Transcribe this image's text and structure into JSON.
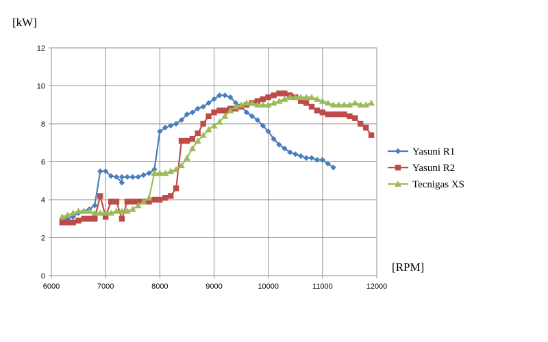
{
  "chart_data": {
    "type": "line",
    "ylabel": "[kW]",
    "xlabel": "[RPM]",
    "xlim": [
      6000,
      12000
    ],
    "ylim": [
      0,
      12
    ],
    "x_ticks": [
      6000,
      7000,
      8000,
      9000,
      10000,
      11000,
      12000
    ],
    "y_ticks": [
      0,
      2,
      4,
      6,
      8,
      10,
      12
    ],
    "grid": true,
    "legend_position": "right",
    "series": [
      {
        "name": "Yasuni R1",
        "color": "#4a7ebb",
        "marker": "diamond",
        "points": [
          [
            6200,
            3.0
          ],
          [
            6300,
            3.0
          ],
          [
            6400,
            3.1
          ],
          [
            6500,
            3.3
          ],
          [
            6600,
            3.4
          ],
          [
            6700,
            3.5
          ],
          [
            6800,
            3.7
          ],
          [
            6900,
            5.5
          ],
          [
            7000,
            5.5
          ],
          [
            7100,
            5.25
          ],
          [
            7200,
            5.2
          ],
          [
            7300,
            4.9
          ],
          [
            7300,
            5.2
          ],
          [
            7400,
            5.2
          ],
          [
            7500,
            5.2
          ],
          [
            7600,
            5.2
          ],
          [
            7700,
            5.3
          ],
          [
            7800,
            5.4
          ],
          [
            7900,
            5.6
          ],
          [
            8000,
            7.6
          ],
          [
            8100,
            7.8
          ],
          [
            8200,
            7.9
          ],
          [
            8300,
            8.0
          ],
          [
            8400,
            8.2
          ],
          [
            8500,
            8.5
          ],
          [
            8600,
            8.6
          ],
          [
            8700,
            8.8
          ],
          [
            8800,
            8.9
          ],
          [
            8900,
            9.1
          ],
          [
            9000,
            9.3
          ],
          [
            9100,
            9.5
          ],
          [
            9200,
            9.5
          ],
          [
            9300,
            9.4
          ],
          [
            9400,
            9.1
          ],
          [
            9500,
            8.9
          ],
          [
            9600,
            8.6
          ],
          [
            9700,
            8.4
          ],
          [
            9800,
            8.2
          ],
          [
            9900,
            7.9
          ],
          [
            10000,
            7.6
          ],
          [
            10100,
            7.2
          ],
          [
            10200,
            6.9
          ],
          [
            10300,
            6.7
          ],
          [
            10400,
            6.5
          ],
          [
            10500,
            6.4
          ],
          [
            10600,
            6.3
          ],
          [
            10700,
            6.2
          ],
          [
            10800,
            6.2
          ],
          [
            10900,
            6.1
          ],
          [
            11000,
            6.1
          ],
          [
            11100,
            5.9
          ],
          [
            11200,
            5.7
          ]
        ]
      },
      {
        "name": "Yasuni R2",
        "color": "#be4b48",
        "marker": "square",
        "points": [
          [
            6200,
            2.8
          ],
          [
            6300,
            2.8
          ],
          [
            6400,
            2.8
          ],
          [
            6500,
            2.9
          ],
          [
            6600,
            3.0
          ],
          [
            6700,
            3.0
          ],
          [
            6800,
            3.0
          ],
          [
            6900,
            4.2
          ],
          [
            7000,
            3.1
          ],
          [
            7100,
            3.9
          ],
          [
            7200,
            3.9
          ],
          [
            7300,
            3.0
          ],
          [
            7400,
            3.9
          ],
          [
            7500,
            3.9
          ],
          [
            7600,
            3.9
          ],
          [
            7700,
            3.9
          ],
          [
            7800,
            3.9
          ],
          [
            7900,
            4.0
          ],
          [
            8000,
            4.0
          ],
          [
            8100,
            4.1
          ],
          [
            8200,
            4.2
          ],
          [
            8300,
            4.6
          ],
          [
            8400,
            7.1
          ],
          [
            8500,
            7.1
          ],
          [
            8600,
            7.2
          ],
          [
            8700,
            7.5
          ],
          [
            8800,
            8.0
          ],
          [
            8900,
            8.4
          ],
          [
            9000,
            8.6
          ],
          [
            9100,
            8.7
          ],
          [
            9200,
            8.7
          ],
          [
            9300,
            8.8
          ],
          [
            9400,
            8.8
          ],
          [
            9500,
            8.9
          ],
          [
            9600,
            9.0
          ],
          [
            9700,
            9.1
          ],
          [
            9800,
            9.2
          ],
          [
            9900,
            9.3
          ],
          [
            10000,
            9.4
          ],
          [
            10100,
            9.5
          ],
          [
            10200,
            9.6
          ],
          [
            10300,
            9.6
          ],
          [
            10400,
            9.5
          ],
          [
            10500,
            9.4
          ],
          [
            10600,
            9.2
          ],
          [
            10700,
            9.1
          ],
          [
            10800,
            8.9
          ],
          [
            10900,
            8.7
          ],
          [
            11000,
            8.6
          ],
          [
            11100,
            8.5
          ],
          [
            11200,
            8.5
          ],
          [
            11300,
            8.5
          ],
          [
            11400,
            8.5
          ],
          [
            11500,
            8.4
          ],
          [
            11600,
            8.3
          ],
          [
            11700,
            8.0
          ],
          [
            11800,
            7.8
          ],
          [
            11900,
            7.4
          ]
        ]
      },
      {
        "name": "Tecnigas XS",
        "color": "#9bbb59",
        "marker": "triangle",
        "points": [
          [
            6200,
            3.1
          ],
          [
            6300,
            3.2
          ],
          [
            6400,
            3.3
          ],
          [
            6500,
            3.4
          ],
          [
            6600,
            3.4
          ],
          [
            6700,
            3.4
          ],
          [
            6800,
            3.3
          ],
          [
            6900,
            3.3
          ],
          [
            7000,
            3.3
          ],
          [
            7100,
            3.3
          ],
          [
            7200,
            3.4
          ],
          [
            7300,
            3.4
          ],
          [
            7400,
            3.4
          ],
          [
            7500,
            3.5
          ],
          [
            7600,
            3.7
          ],
          [
            7700,
            3.9
          ],
          [
            7800,
            4.1
          ],
          [
            7900,
            5.4
          ],
          [
            8000,
            5.4
          ],
          [
            8100,
            5.4
          ],
          [
            8200,
            5.5
          ],
          [
            8300,
            5.6
          ],
          [
            8400,
            5.8
          ],
          [
            8500,
            6.2
          ],
          [
            8600,
            6.7
          ],
          [
            8700,
            7.1
          ],
          [
            8800,
            7.4
          ],
          [
            8900,
            7.7
          ],
          [
            9000,
            7.9
          ],
          [
            9100,
            8.1
          ],
          [
            9200,
            8.4
          ],
          [
            9300,
            8.7
          ],
          [
            9400,
            8.9
          ],
          [
            9500,
            9.0
          ],
          [
            9600,
            9.1
          ],
          [
            9700,
            9.1
          ],
          [
            9800,
            9.0
          ],
          [
            9900,
            9.0
          ],
          [
            10000,
            9.0
          ],
          [
            10100,
            9.1
          ],
          [
            10200,
            9.2
          ],
          [
            10300,
            9.3
          ],
          [
            10400,
            9.4
          ],
          [
            10500,
            9.4
          ],
          [
            10600,
            9.4
          ],
          [
            10700,
            9.4
          ],
          [
            10800,
            9.4
          ],
          [
            10900,
            9.3
          ],
          [
            11000,
            9.2
          ],
          [
            11100,
            9.1
          ],
          [
            11200,
            9.0
          ],
          [
            11300,
            9.0
          ],
          [
            11400,
            9.0
          ],
          [
            11500,
            9.0
          ],
          [
            11600,
            9.1
          ],
          [
            11700,
            9.0
          ],
          [
            11800,
            9.0
          ],
          [
            11900,
            9.1
          ]
        ]
      }
    ]
  }
}
